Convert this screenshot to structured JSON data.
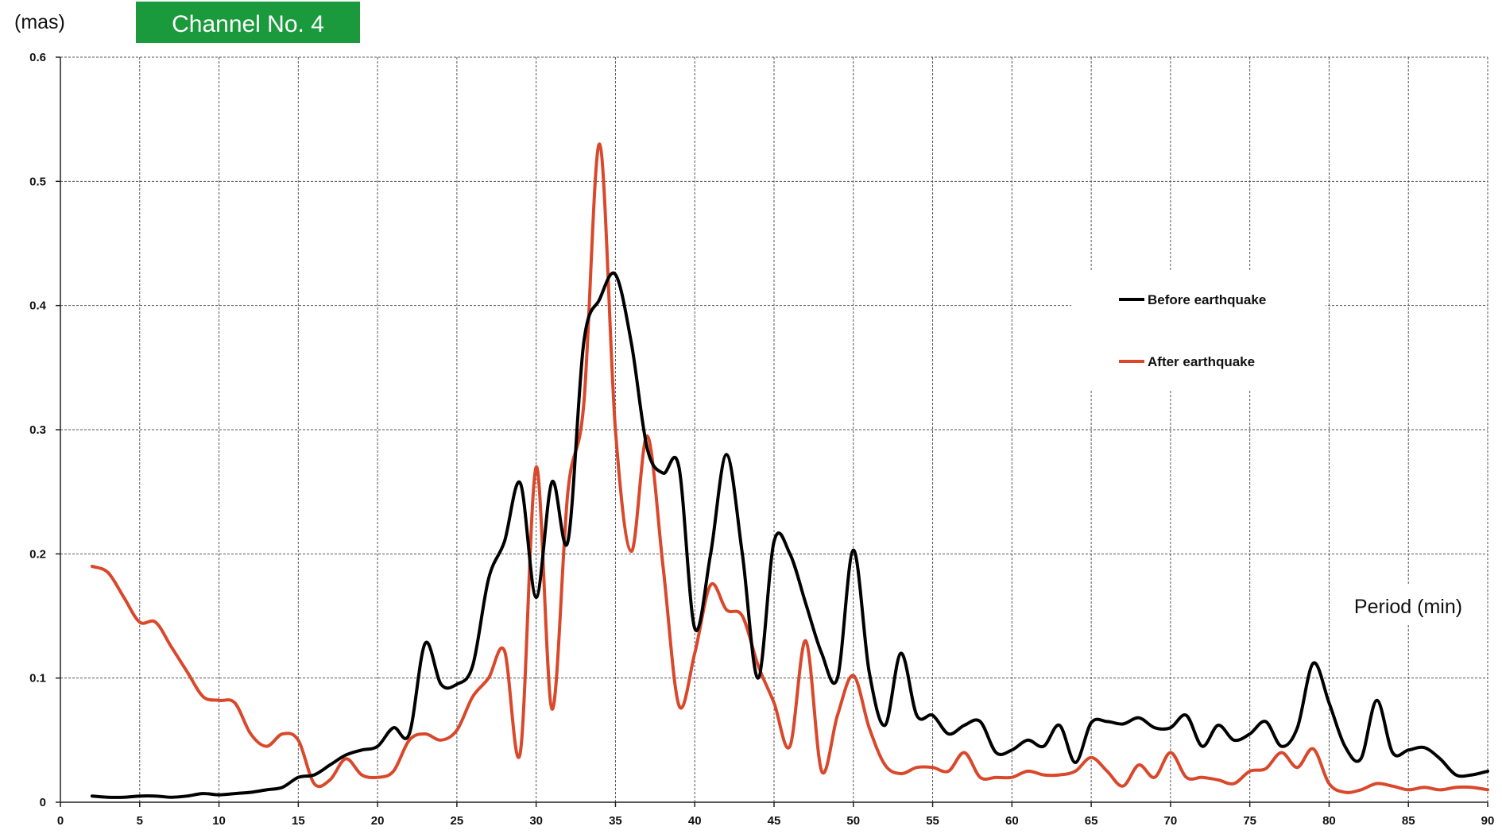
{
  "chart_data": {
    "type": "line",
    "title": "Channel No. 4",
    "y_unit": "(mas)",
    "xlabel": "Period (min)",
    "ylabel": "(mas)",
    "xlim": [
      0,
      90
    ],
    "ylim": [
      0,
      0.6
    ],
    "x_ticks": [
      0,
      5,
      10,
      15,
      20,
      25,
      30,
      35,
      40,
      45,
      50,
      55,
      60,
      65,
      70,
      75,
      80,
      85,
      90
    ],
    "y_ticks": [
      0,
      0.1,
      0.2,
      0.3,
      0.4,
      0.5,
      0.6
    ],
    "y_tick_labels": [
      "0",
      "0.1",
      "0.2",
      "0.3",
      "0.4",
      "0.5",
      "0.6"
    ],
    "grid": true,
    "legend_position": "right",
    "colors": {
      "badge": "#1a9a3c",
      "before": "#000000",
      "after": "#d9482b",
      "grid": "#555555"
    },
    "series": [
      {
        "name": "Before earthquake",
        "color": "#000000",
        "points": [
          [
            2,
            0.005
          ],
          [
            3,
            0.004
          ],
          [
            4,
            0.004
          ],
          [
            5,
            0.005
          ],
          [
            6,
            0.005
          ],
          [
            7,
            0.004
          ],
          [
            8,
            0.005
          ],
          [
            9,
            0.007
          ],
          [
            10,
            0.006
          ],
          [
            11,
            0.007
          ],
          [
            12,
            0.008
          ],
          [
            13,
            0.01
          ],
          [
            14,
            0.012
          ],
          [
            15,
            0.02
          ],
          [
            16,
            0.022
          ],
          [
            17,
            0.03
          ],
          [
            18,
            0.038
          ],
          [
            19,
            0.042
          ],
          [
            20,
            0.045
          ],
          [
            21,
            0.06
          ],
          [
            22,
            0.055
          ],
          [
            23,
            0.128
          ],
          [
            24,
            0.095
          ],
          [
            25,
            0.095
          ],
          [
            26,
            0.11
          ],
          [
            27,
            0.18
          ],
          [
            28,
            0.21
          ],
          [
            29,
            0.257
          ],
          [
            30,
            0.165
          ],
          [
            31,
            0.258
          ],
          [
            32,
            0.21
          ],
          [
            33,
            0.37
          ],
          [
            34,
            0.405
          ],
          [
            35,
            0.425
          ],
          [
            36,
            0.37
          ],
          [
            37,
            0.285
          ],
          [
            38,
            0.265
          ],
          [
            39,
            0.27
          ],
          [
            40,
            0.14
          ],
          [
            41,
            0.2
          ],
          [
            42,
            0.28
          ],
          [
            43,
            0.2
          ],
          [
            44,
            0.1
          ],
          [
            45,
            0.21
          ],
          [
            46,
            0.2
          ],
          [
            47,
            0.16
          ],
          [
            48,
            0.12
          ],
          [
            49,
            0.1
          ],
          [
            50,
            0.203
          ],
          [
            51,
            0.105
          ],
          [
            52,
            0.062
          ],
          [
            53,
            0.12
          ],
          [
            54,
            0.07
          ],
          [
            55,
            0.07
          ],
          [
            56,
            0.055
          ],
          [
            57,
            0.062
          ],
          [
            58,
            0.065
          ],
          [
            59,
            0.04
          ],
          [
            60,
            0.042
          ],
          [
            61,
            0.05
          ],
          [
            62,
            0.045
          ],
          [
            63,
            0.062
          ],
          [
            64,
            0.032
          ],
          [
            65,
            0.064
          ],
          [
            66,
            0.065
          ],
          [
            67,
            0.063
          ],
          [
            68,
            0.068
          ],
          [
            69,
            0.06
          ],
          [
            70,
            0.06
          ],
          [
            71,
            0.07
          ],
          [
            72,
            0.045
          ],
          [
            73,
            0.062
          ],
          [
            74,
            0.05
          ],
          [
            75,
            0.055
          ],
          [
            76,
            0.065
          ],
          [
            77,
            0.045
          ],
          [
            78,
            0.06
          ],
          [
            79,
            0.112
          ],
          [
            80,
            0.08
          ],
          [
            81,
            0.045
          ],
          [
            82,
            0.035
          ],
          [
            83,
            0.082
          ],
          [
            84,
            0.04
          ],
          [
            85,
            0.042
          ],
          [
            86,
            0.044
          ],
          [
            87,
            0.035
          ],
          [
            88,
            0.022
          ],
          [
            89,
            0.022
          ],
          [
            90,
            0.025
          ]
        ]
      },
      {
        "name": "After earthquake",
        "color": "#d9482b",
        "points": [
          [
            2,
            0.19
          ],
          [
            3,
            0.185
          ],
          [
            4,
            0.165
          ],
          [
            5,
            0.145
          ],
          [
            6,
            0.145
          ],
          [
            7,
            0.125
          ],
          [
            8,
            0.105
          ],
          [
            9,
            0.085
          ],
          [
            10,
            0.082
          ],
          [
            11,
            0.08
          ],
          [
            12,
            0.055
          ],
          [
            13,
            0.045
          ],
          [
            14,
            0.055
          ],
          [
            15,
            0.05
          ],
          [
            16,
            0.015
          ],
          [
            17,
            0.018
          ],
          [
            18,
            0.035
          ],
          [
            19,
            0.022
          ],
          [
            20,
            0.02
          ],
          [
            21,
            0.025
          ],
          [
            22,
            0.05
          ],
          [
            23,
            0.055
          ],
          [
            24,
            0.05
          ],
          [
            25,
            0.058
          ],
          [
            26,
            0.085
          ],
          [
            27,
            0.1
          ],
          [
            28,
            0.122
          ],
          [
            29,
            0.04
          ],
          [
            30,
            0.27
          ],
          [
            31,
            0.075
          ],
          [
            32,
            0.25
          ],
          [
            33,
            0.32
          ],
          [
            34,
            0.53
          ],
          [
            35,
            0.3
          ],
          [
            36,
            0.202
          ],
          [
            37,
            0.295
          ],
          [
            38,
            0.19
          ],
          [
            39,
            0.078
          ],
          [
            40,
            0.12
          ],
          [
            41,
            0.175
          ],
          [
            42,
            0.155
          ],
          [
            43,
            0.15
          ],
          [
            44,
            0.11
          ],
          [
            45,
            0.08
          ],
          [
            46,
            0.045
          ],
          [
            47,
            0.13
          ],
          [
            48,
            0.025
          ],
          [
            49,
            0.07
          ],
          [
            50,
            0.102
          ],
          [
            51,
            0.06
          ],
          [
            52,
            0.03
          ],
          [
            53,
            0.023
          ],
          [
            54,
            0.028
          ],
          [
            55,
            0.028
          ],
          [
            56,
            0.025
          ],
          [
            57,
            0.04
          ],
          [
            58,
            0.02
          ],
          [
            59,
            0.02
          ],
          [
            60,
            0.02
          ],
          [
            61,
            0.025
          ],
          [
            62,
            0.022
          ],
          [
            63,
            0.022
          ],
          [
            64,
            0.025
          ],
          [
            65,
            0.036
          ],
          [
            66,
            0.025
          ],
          [
            67,
            0.013
          ],
          [
            68,
            0.03
          ],
          [
            69,
            0.02
          ],
          [
            70,
            0.04
          ],
          [
            71,
            0.02
          ],
          [
            72,
            0.02
          ],
          [
            73,
            0.018
          ],
          [
            74,
            0.015
          ],
          [
            75,
            0.025
          ],
          [
            76,
            0.027
          ],
          [
            77,
            0.04
          ],
          [
            78,
            0.028
          ],
          [
            79,
            0.043
          ],
          [
            80,
            0.015
          ],
          [
            81,
            0.008
          ],
          [
            82,
            0.01
          ],
          [
            83,
            0.015
          ],
          [
            84,
            0.013
          ],
          [
            85,
            0.01
          ],
          [
            86,
            0.012
          ],
          [
            87,
            0.01
          ],
          [
            88,
            0.012
          ],
          [
            89,
            0.012
          ],
          [
            90,
            0.01
          ]
        ]
      }
    ]
  }
}
